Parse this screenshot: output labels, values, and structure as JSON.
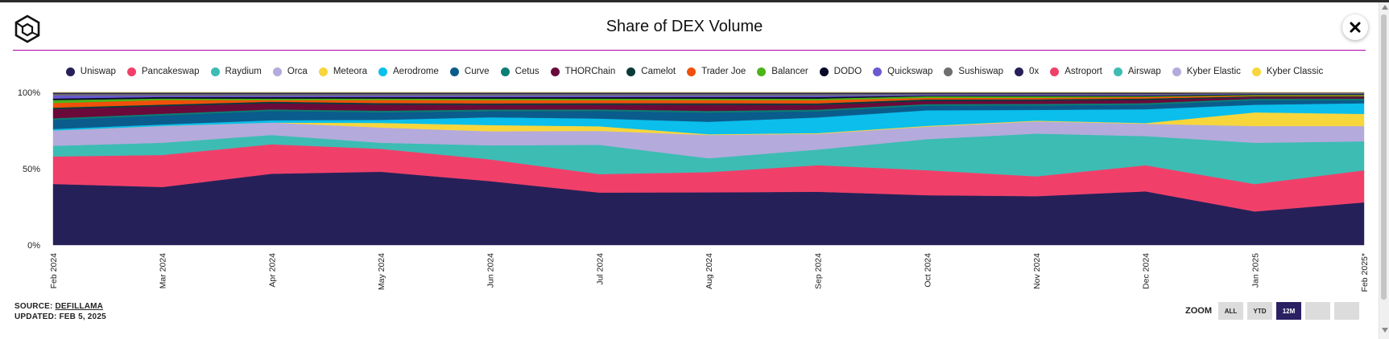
{
  "header": {
    "title": "Share of DEX Volume",
    "logo_icon": "cube-logo-icon",
    "close_icon": "close-icon"
  },
  "footer": {
    "source_prefix": "SOURCE:",
    "source_link": "DEFILLAMA",
    "updated": "UPDATED: FEB 5, 2025"
  },
  "zoom": {
    "label": "ZOOM",
    "buttons": [
      "ALL",
      "YTD",
      "12M",
      "",
      ""
    ],
    "active": "12M"
  },
  "chart_data": {
    "type": "area",
    "stacked": true,
    "normalized": true,
    "title": "Share of DEX Volume",
    "xlabel": "",
    "ylabel": "",
    "ylim": [
      0,
      100
    ],
    "y_ticks": [
      "100%",
      "50%",
      "0%"
    ],
    "x": [
      "Feb 2024",
      "Mar 2024",
      "Apr 2024",
      "May 2024",
      "Jun 2024",
      "Jul 2024",
      "Aug 2024",
      "Sep 2024",
      "Oct 2024",
      "Nov 2024",
      "Dec 2024",
      "Jan 2025",
      "Feb 2025*"
    ],
    "series": [
      {
        "name": "Uniswap",
        "color": "#262058",
        "values": [
          40,
          38,
          46,
          48,
          41,
          34,
          34,
          34,
          32,
          32,
          35,
          22,
          28
        ]
      },
      {
        "name": "Pancakeswap",
        "color": "#f0406a",
        "values": [
          18,
          21,
          19,
          15,
          14,
          12,
          13,
          17,
          16,
          13,
          17,
          18,
          21
        ]
      },
      {
        "name": "Raydium",
        "color": "#3dbcb4",
        "values": [
          7,
          8,
          6,
          4,
          9,
          19,
          9,
          10,
          20,
          28,
          19,
          27,
          19
        ]
      },
      {
        "name": "Orca",
        "color": "#b4aadc",
        "values": [
          10,
          11,
          8,
          10,
          9,
          9,
          15,
          10,
          8,
          8,
          8,
          11,
          10
        ]
      },
      {
        "name": "Meteora",
        "color": "#f7d63c",
        "values": [
          0,
          0,
          0,
          3,
          4,
          3,
          0.5,
          0.5,
          0.5,
          0.5,
          0.5,
          9,
          8
        ]
      },
      {
        "name": "Aerodrome",
        "color": "#0bbeec",
        "values": [
          1,
          1,
          1.5,
          2,
          5,
          5,
          8,
          10,
          10,
          7,
          9,
          5,
          7
        ]
      },
      {
        "name": "Curve",
        "color": "#0a5c8c",
        "values": [
          6,
          6,
          6,
          5,
          4,
          5,
          6,
          4,
          3,
          3,
          3,
          3,
          2
        ]
      },
      {
        "name": "Cetus",
        "color": "#0a7e72",
        "values": [
          1,
          1,
          1,
          1,
          1,
          1,
          1,
          1,
          1,
          1,
          1,
          1,
          1
        ]
      },
      {
        "name": "THORChain",
        "color": "#6a0a3a",
        "values": [
          6,
          5,
          4,
          4,
          3,
          3,
          4,
          3,
          2,
          2,
          2,
          1,
          1
        ]
      },
      {
        "name": "Camelot",
        "color": "#0a3a3a",
        "values": [
          1,
          1,
          1,
          1,
          1,
          1,
          1,
          1,
          1,
          1,
          1,
          0.5,
          0.5
        ]
      },
      {
        "name": "Trader Joe",
        "color": "#f0500a",
        "values": [
          3,
          3,
          1,
          2,
          2,
          2,
          2,
          2,
          1,
          1,
          1,
          0.5,
          0.5
        ]
      },
      {
        "name": "Balancer",
        "color": "#4cb41a",
        "values": [
          2,
          1,
          1,
          1,
          1,
          1,
          1,
          1,
          1,
          1,
          0.5,
          0.5,
          0.5
        ]
      },
      {
        "name": "DODO",
        "color": "#080828",
        "values": [
          1,
          1,
          1,
          1,
          1,
          1,
          1,
          1,
          0.5,
          0.5,
          0.5,
          0.5,
          0.5
        ]
      },
      {
        "name": "Quickswap",
        "color": "#6a5ad0",
        "values": [
          2,
          1,
          1,
          1,
          1,
          1,
          1,
          1,
          0.5,
          0.5,
          0.5,
          0.3,
          0.3
        ]
      },
      {
        "name": "Sushiswap",
        "color": "#6e6e6e",
        "values": [
          1,
          1,
          1,
          1,
          1,
          1,
          1,
          1,
          0.5,
          0.5,
          0.5,
          0.3,
          0.3
        ]
      },
      {
        "name": "0x",
        "color": "#262058",
        "values": [
          1,
          1,
          1,
          1,
          1,
          1,
          1,
          1,
          1,
          1,
          1,
          0.5,
          0.5
        ]
      },
      {
        "name": "Astroport",
        "color": "#f0406a",
        "values": [
          0,
          0,
          0,
          0,
          0,
          0,
          0,
          0,
          0,
          0,
          0,
          0,
          0
        ]
      },
      {
        "name": "Airswap",
        "color": "#3dbcb4",
        "values": [
          0,
          0,
          0,
          0,
          0,
          0,
          0,
          0,
          0,
          0,
          0,
          0,
          0
        ]
      },
      {
        "name": "Kyber Elastic",
        "color": "#b4aadc",
        "values": [
          0,
          0,
          0,
          0,
          0,
          0,
          0,
          0,
          0,
          0,
          0,
          0,
          0
        ]
      },
      {
        "name": "Kyber Classic",
        "color": "#f7d63c",
        "values": [
          0,
          0,
          0,
          0,
          0,
          0,
          0,
          0,
          0,
          0,
          0,
          0,
          0
        ]
      }
    ]
  }
}
